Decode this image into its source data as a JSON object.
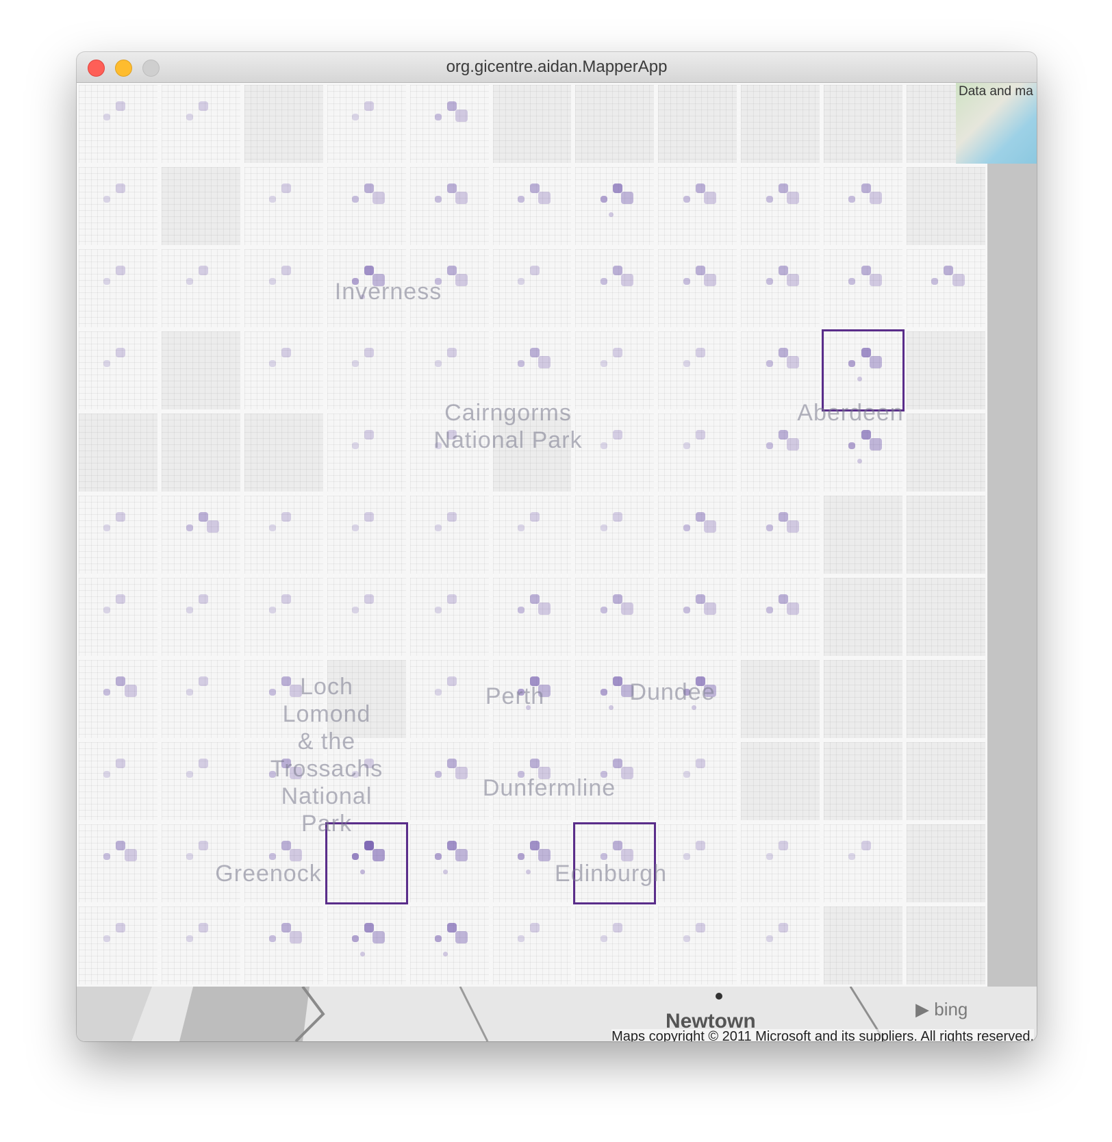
{
  "window": {
    "title": "org.gicentre.aidan.MapperApp"
  },
  "map": {
    "place_labels": [
      {
        "id": "inverness",
        "text": "Inverness"
      },
      {
        "id": "cairngorms",
        "text": "Cairngorms\nNational Park"
      },
      {
        "id": "aberdeen",
        "text": "Aberdeen"
      },
      {
        "id": "loch-lomond",
        "text": "Loch\nLomond\n& the\nTrossachs\nNational\nPark"
      },
      {
        "id": "perth",
        "text": "Perth"
      },
      {
        "id": "dundee",
        "text": "Dundee"
      },
      {
        "id": "dunfermline",
        "text": "Dunfermline"
      },
      {
        "id": "greenock",
        "text": "Greenock"
      },
      {
        "id": "edinburgh",
        "text": "Edinburgh"
      },
      {
        "id": "newtown",
        "text": "Newtown"
      }
    ],
    "minimap_label": "Data and ma",
    "attribution": "Maps copyright © 2011 Microsoft and its suppliers. All rights reserved.",
    "bing_logo": "bing",
    "accent_color": "#5a2d8a",
    "blob_color": "#6a4aa8"
  },
  "grid": {
    "rows": 11,
    "cols": 11,
    "selected_cells": [
      [
        9,
        3
      ],
      [
        9,
        6
      ],
      [
        3,
        9
      ]
    ],
    "intensity": [
      [
        1,
        1,
        0,
        1,
        2,
        0,
        0,
        0,
        0,
        0,
        0
      ],
      [
        1,
        0,
        1,
        2,
        2,
        2,
        3,
        2,
        2,
        2,
        0
      ],
      [
        1,
        1,
        1,
        3,
        2,
        1,
        2,
        2,
        2,
        2,
        2
      ],
      [
        1,
        0,
        1,
        1,
        1,
        2,
        1,
        1,
        2,
        3,
        0
      ],
      [
        0,
        0,
        0,
        1,
        1,
        0,
        1,
        1,
        2,
        3,
        0
      ],
      [
        1,
        2,
        1,
        1,
        1,
        1,
        1,
        2,
        2,
        0,
        0
      ],
      [
        1,
        1,
        1,
        1,
        1,
        2,
        2,
        2,
        2,
        0,
        0
      ],
      [
        2,
        1,
        2,
        0,
        1,
        3,
        3,
        3,
        0,
        0,
        0
      ],
      [
        1,
        1,
        2,
        1,
        2,
        2,
        2,
        1,
        0,
        0,
        0
      ],
      [
        2,
        1,
        2,
        4,
        3,
        3,
        2,
        1,
        1,
        1,
        0
      ],
      [
        1,
        1,
        2,
        3,
        3,
        1,
        1,
        1,
        1,
        0,
        0
      ]
    ]
  }
}
